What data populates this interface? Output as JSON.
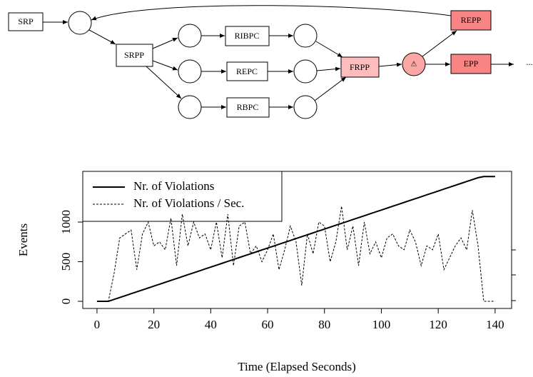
{
  "diagram": {
    "nodes": [
      {
        "label": "SRP"
      },
      {
        "label": "SRPP"
      },
      {
        "label": "RIBPC"
      },
      {
        "label": "REPC"
      },
      {
        "label": "RBPC"
      },
      {
        "label": "FRPP"
      },
      {
        "label": "⚠"
      },
      {
        "label": "REPP"
      },
      {
        "label": "EPP"
      },
      {
        "label": "..."
      }
    ]
  },
  "chart_data": {
    "type": "line",
    "xlabel": "Time (Elapsed Seconds)",
    "ylabel": "Events",
    "x": [
      0,
      2,
      4,
      6,
      8,
      10,
      12,
      14,
      16,
      18,
      20,
      22,
      24,
      26,
      28,
      30,
      32,
      34,
      36,
      38,
      40,
      42,
      44,
      46,
      48,
      50,
      52,
      54,
      56,
      58,
      60,
      62,
      64,
      66,
      68,
      70,
      72,
      74,
      76,
      78,
      80,
      82,
      84,
      86,
      88,
      90,
      92,
      94,
      96,
      98,
      100,
      102,
      104,
      106,
      108,
      110,
      112,
      114,
      116,
      118,
      120,
      122,
      124,
      126,
      128,
      130,
      132,
      134,
      136,
      138,
      140
    ],
    "series": [
      {
        "name": "Nr. of Violations",
        "color": "#000000",
        "dash": false,
        "values": [
          0,
          0,
          0,
          24,
          48,
          72,
          96,
          120,
          144,
          168,
          192,
          216,
          240,
          264,
          288,
          312,
          336,
          360,
          384,
          408,
          432,
          456,
          480,
          504,
          528,
          552,
          576,
          600,
          624,
          648,
          672,
          696,
          720,
          744,
          768,
          792,
          816,
          840,
          864,
          888,
          912,
          936,
          960,
          984,
          1008,
          1032,
          1056,
          1080,
          1104,
          1128,
          1152,
          1176,
          1200,
          1224,
          1248,
          1272,
          1296,
          1320,
          1344,
          1368,
          1392,
          1416,
          1440,
          1464,
          1488,
          1512,
          1536,
          1560,
          1575,
          1575,
          1575
        ]
      },
      {
        "name": "Nr. of Violations / Sec.",
        "color": "#000000",
        "dash": true,
        "values": [
          0,
          0,
          0,
          350,
          800,
          850,
          900,
          400,
          850,
          1000,
          700,
          750,
          650,
          1050,
          450,
          1100,
          700,
          1000,
          800,
          850,
          650,
          1000,
          550,
          1100,
          450,
          950,
          1000,
          600,
          700,
          500,
          650,
          850,
          400,
          650,
          950,
          750,
          200,
          850,
          600,
          1000,
          950,
          500,
          750,
          1200,
          650,
          950,
          450,
          1000,
          600,
          750,
          550,
          800,
          850,
          700,
          650,
          900,
          750,
          450,
          700,
          650,
          850,
          400,
          550,
          700,
          800,
          650,
          1150,
          700,
          0,
          0,
          0
        ]
      }
    ],
    "xlim": [
      -5,
      145.8
    ],
    "ylim": [
      -90,
      1640
    ],
    "xticks": [
      0,
      20,
      40,
      60,
      80,
      100,
      120,
      140
    ],
    "yticks": [
      0,
      500,
      1000
    ]
  }
}
